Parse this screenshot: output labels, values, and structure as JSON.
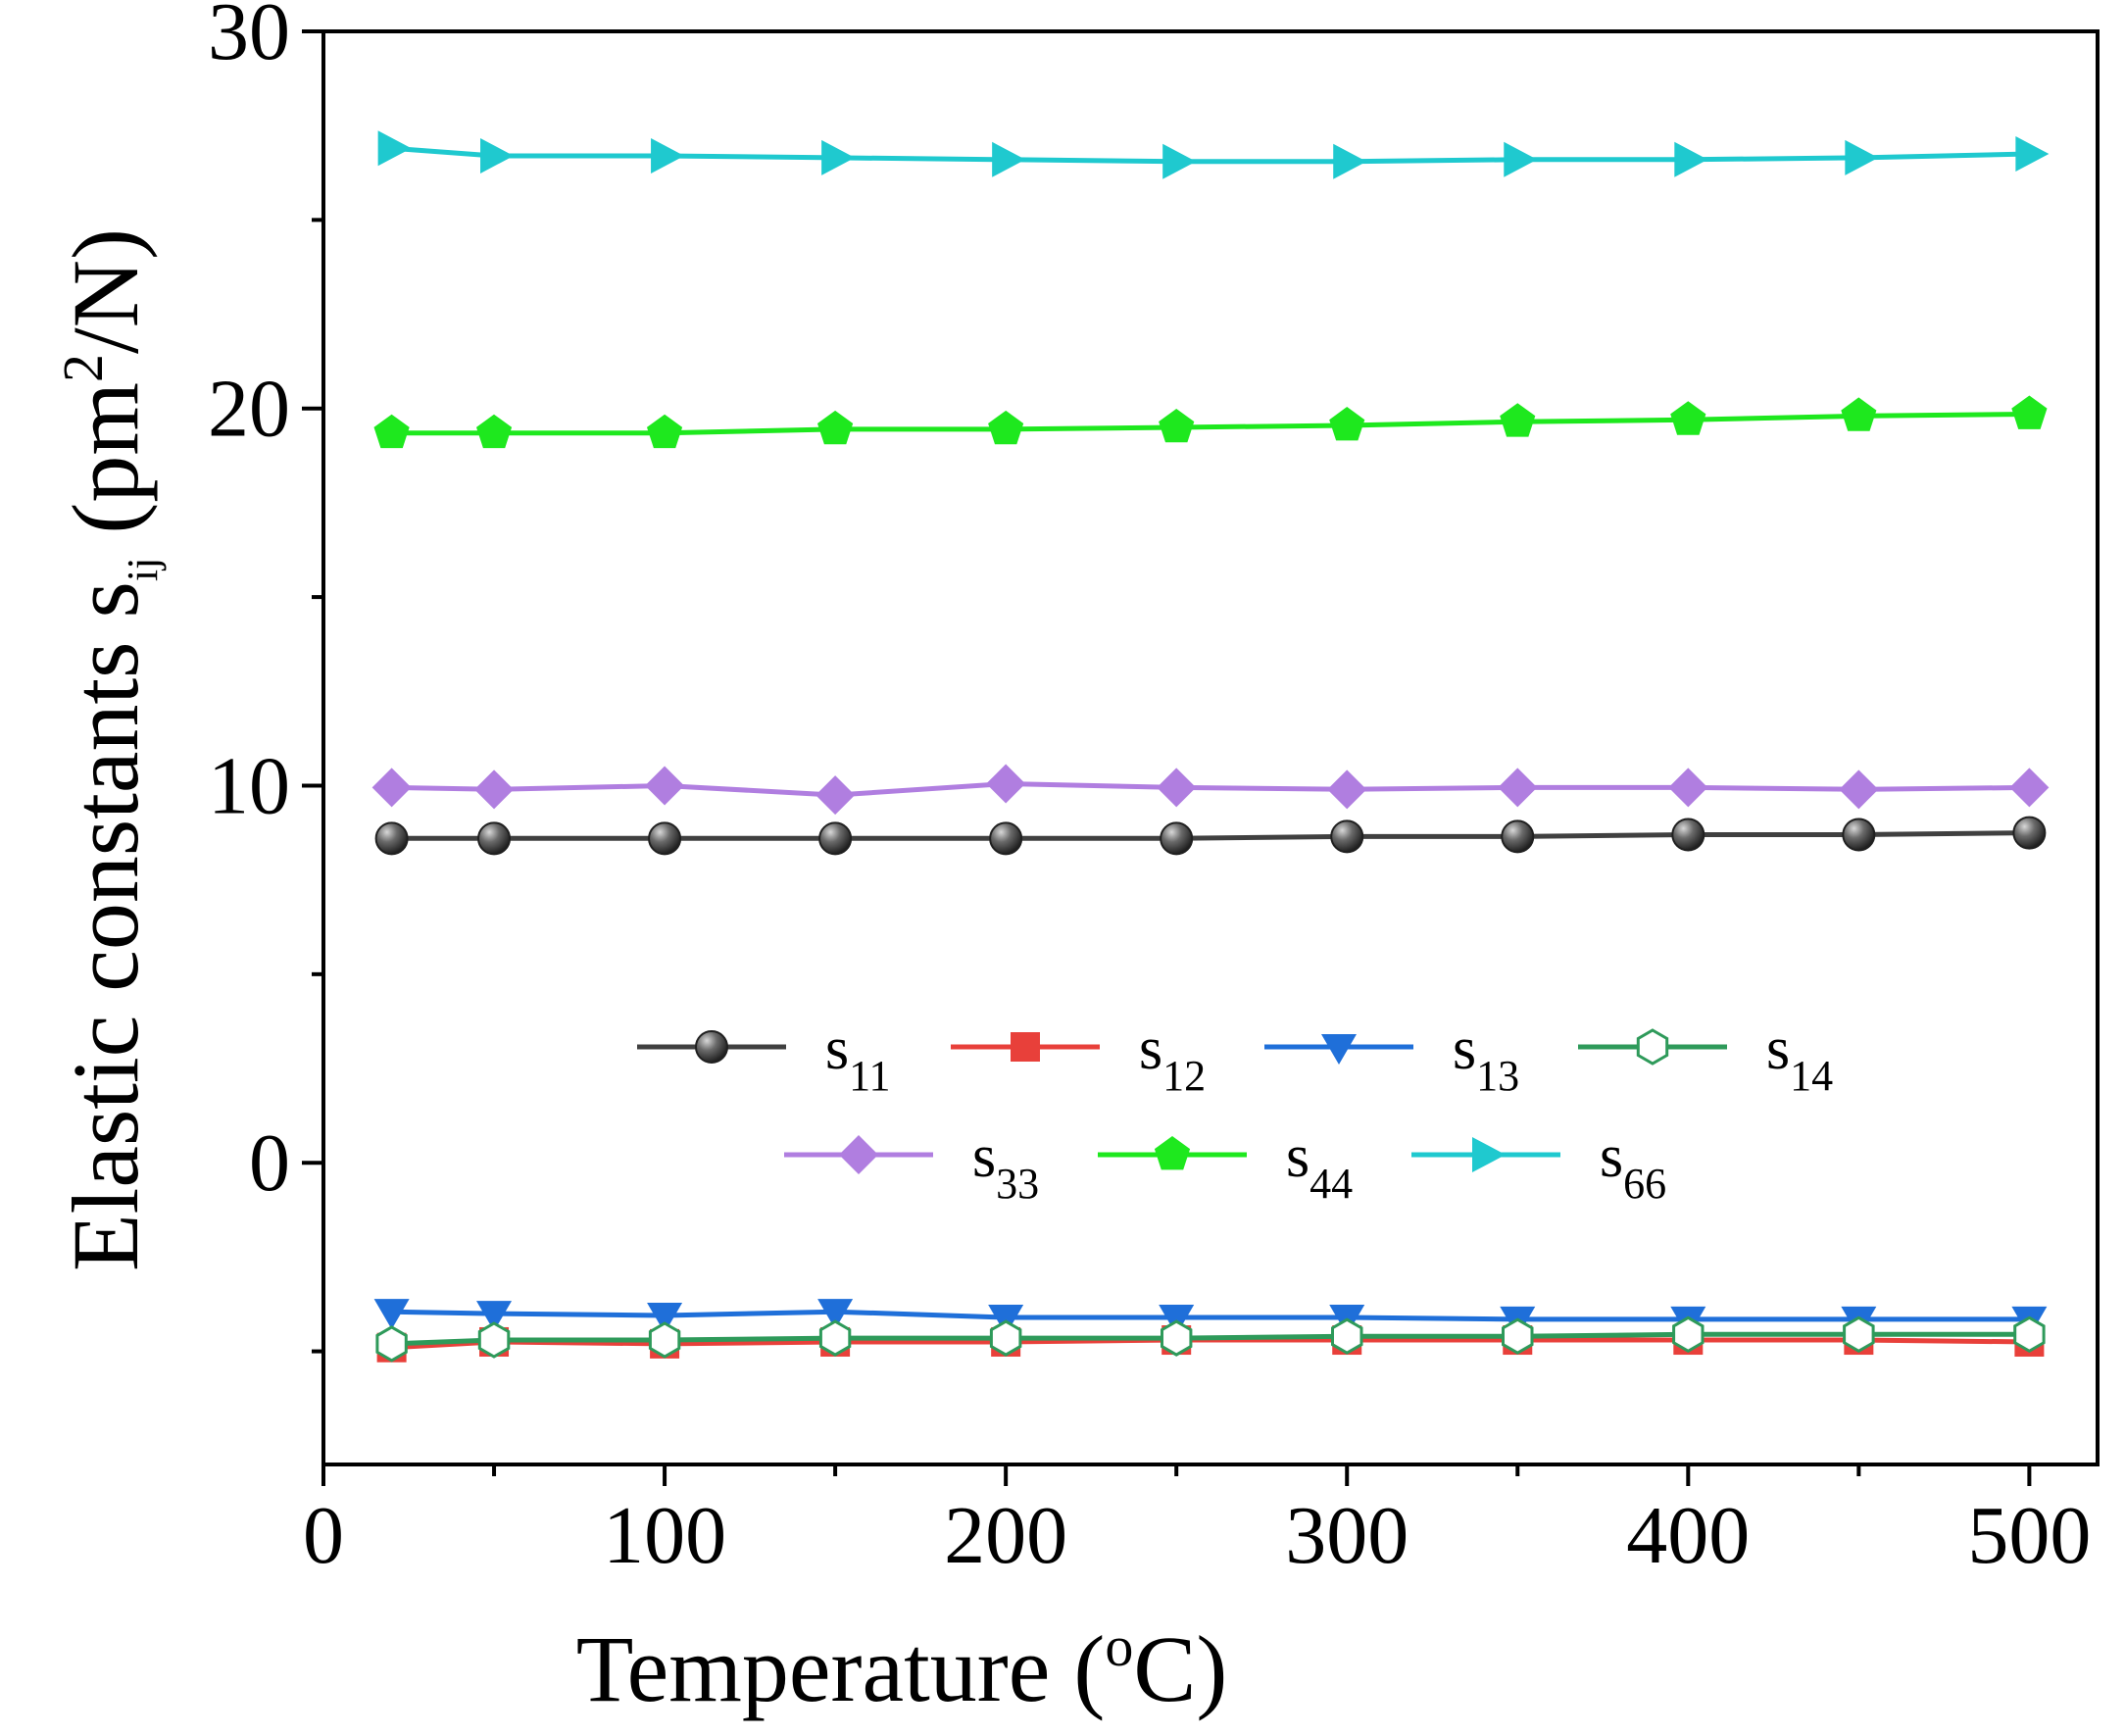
{
  "chart_data": {
    "type": "line",
    "xlabel_main": "Temperature (",
    "xlabel_sup": "o",
    "xlabel_tail": "C)",
    "ylabel_main": "Elastic constants s",
    "ylabel_sub": "ij",
    "ylabel_mid": " (pm",
    "ylabel_sup": "2",
    "ylabel_tail": "/N)",
    "xlim": [
      0,
      520
    ],
    "ylim": [
      -8,
      30
    ],
    "x_ticks": [
      0,
      100,
      200,
      300,
      400,
      500
    ],
    "x_tick_labels": [
      "0",
      "100",
      "200",
      "300",
      "400",
      "500"
    ],
    "y_ticks": [
      0,
      10,
      20,
      30
    ],
    "y_tick_labels": [
      "0",
      "10",
      "20",
      "30"
    ],
    "x": [
      20,
      50,
      100,
      150,
      200,
      250,
      300,
      350,
      400,
      450,
      500
    ],
    "series": [
      {
        "name": "s",
        "sub": "11",
        "color": "#404040",
        "marker": "sphere",
        "values": [
          8.6,
          8.6,
          8.6,
          8.6,
          8.6,
          8.6,
          8.65,
          8.65,
          8.7,
          8.7,
          8.75
        ]
      },
      {
        "name": "s",
        "sub": "12",
        "color": "#e8403a",
        "marker": "square",
        "values": [
          -4.9,
          -4.75,
          -4.8,
          -4.75,
          -4.75,
          -4.7,
          -4.7,
          -4.7,
          -4.7,
          -4.7,
          -4.75
        ]
      },
      {
        "name": "s",
        "sub": "13",
        "color": "#1f6fd9",
        "marker": "triangle-down",
        "values": [
          -3.95,
          -4.0,
          -4.05,
          -3.95,
          -4.1,
          -4.1,
          -4.1,
          -4.15,
          -4.15,
          -4.15,
          -4.15
        ]
      },
      {
        "name": "s",
        "sub": "14",
        "color": "#2e9a5a",
        "marker": "hexagon-open",
        "values": [
          -4.8,
          -4.7,
          -4.7,
          -4.65,
          -4.65,
          -4.65,
          -4.6,
          -4.6,
          -4.55,
          -4.55,
          -4.55
        ]
      },
      {
        "name": "s",
        "sub": "33",
        "color": "#b07ee0",
        "marker": "diamond",
        "values": [
          9.95,
          9.9,
          10.0,
          9.75,
          10.05,
          9.95,
          9.9,
          9.95,
          9.95,
          9.9,
          9.95
        ]
      },
      {
        "name": "s",
        "sub": "44",
        "color": "#1ee81e",
        "marker": "pentagon",
        "values": [
          19.35,
          19.35,
          19.35,
          19.45,
          19.45,
          19.5,
          19.55,
          19.65,
          19.7,
          19.8,
          19.85
        ]
      },
      {
        "name": "s",
        "sub": "66",
        "color": "#1fc9cf",
        "marker": "triangle-right",
        "values": [
          26.9,
          26.7,
          26.7,
          26.65,
          26.6,
          26.55,
          26.55,
          26.6,
          26.6,
          26.65,
          26.75
        ]
      }
    ]
  }
}
